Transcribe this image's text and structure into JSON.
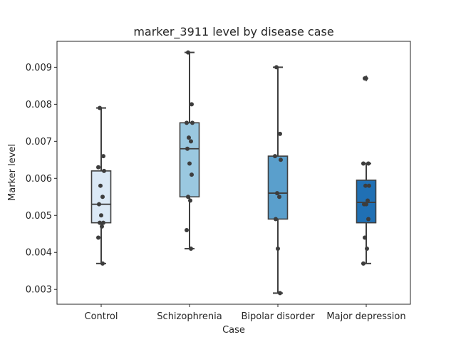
{
  "chart_data": {
    "type": "box",
    "title": "marker_3911 level by disease case",
    "xlabel": "Case",
    "ylabel": "Marker level",
    "ylim": [
      0.0026,
      0.0097
    ],
    "yticks": [
      "0.003",
      "0.004",
      "0.005",
      "0.006",
      "0.007",
      "0.008",
      "0.009"
    ],
    "yticks_values": [
      0.003,
      0.004,
      0.005,
      0.006,
      0.007,
      0.008,
      0.009
    ],
    "grid": false,
    "legend": "none",
    "categories": [
      "Control",
      "Schizophrenia",
      "Bipolar disorder",
      "Major depression"
    ],
    "colors": [
      "#dbe9f6",
      "#9ac8e0",
      "#5a9fcc",
      "#2070b4"
    ],
    "boxes": [
      {
        "whisker_low": 0.0037,
        "q1": 0.0048,
        "median": 0.0053,
        "q3": 0.0062,
        "whisker_high": 0.0079,
        "outliers": []
      },
      {
        "whisker_low": 0.0041,
        "q1": 0.0055,
        "median": 0.0068,
        "q3": 0.0075,
        "whisker_high": 0.0094,
        "outliers": []
      },
      {
        "whisker_low": 0.0029,
        "q1": 0.0049,
        "median": 0.0056,
        "q3": 0.0066,
        "whisker_high": 0.009,
        "outliers": []
      },
      {
        "whisker_low": 0.0037,
        "q1": 0.0048,
        "median": 0.00535,
        "q3": 0.00595,
        "whisker_high": 0.0064,
        "outliers": [
          0.0087
        ]
      }
    ],
    "points": [
      [
        0.0079,
        0.0066,
        0.0063,
        0.0062,
        0.0058,
        0.0055,
        0.0053,
        0.005,
        0.0048,
        0.0048,
        0.0047,
        0.0044,
        0.0037
      ],
      [
        0.0094,
        0.008,
        0.0075,
        0.0075,
        0.0071,
        0.007,
        0.0068,
        0.0064,
        0.0061,
        0.0055,
        0.0054,
        0.0046,
        0.0041
      ],
      [
        0.009,
        0.0072,
        0.0066,
        0.0065,
        0.0056,
        0.0055,
        0.0049,
        0.0041,
        0.0029
      ],
      [
        0.0087,
        0.0064,
        0.0064,
        0.0058,
        0.0058,
        0.0054,
        0.0053,
        0.0053,
        0.0049,
        0.0044,
        0.0041,
        0.0037
      ]
    ]
  }
}
